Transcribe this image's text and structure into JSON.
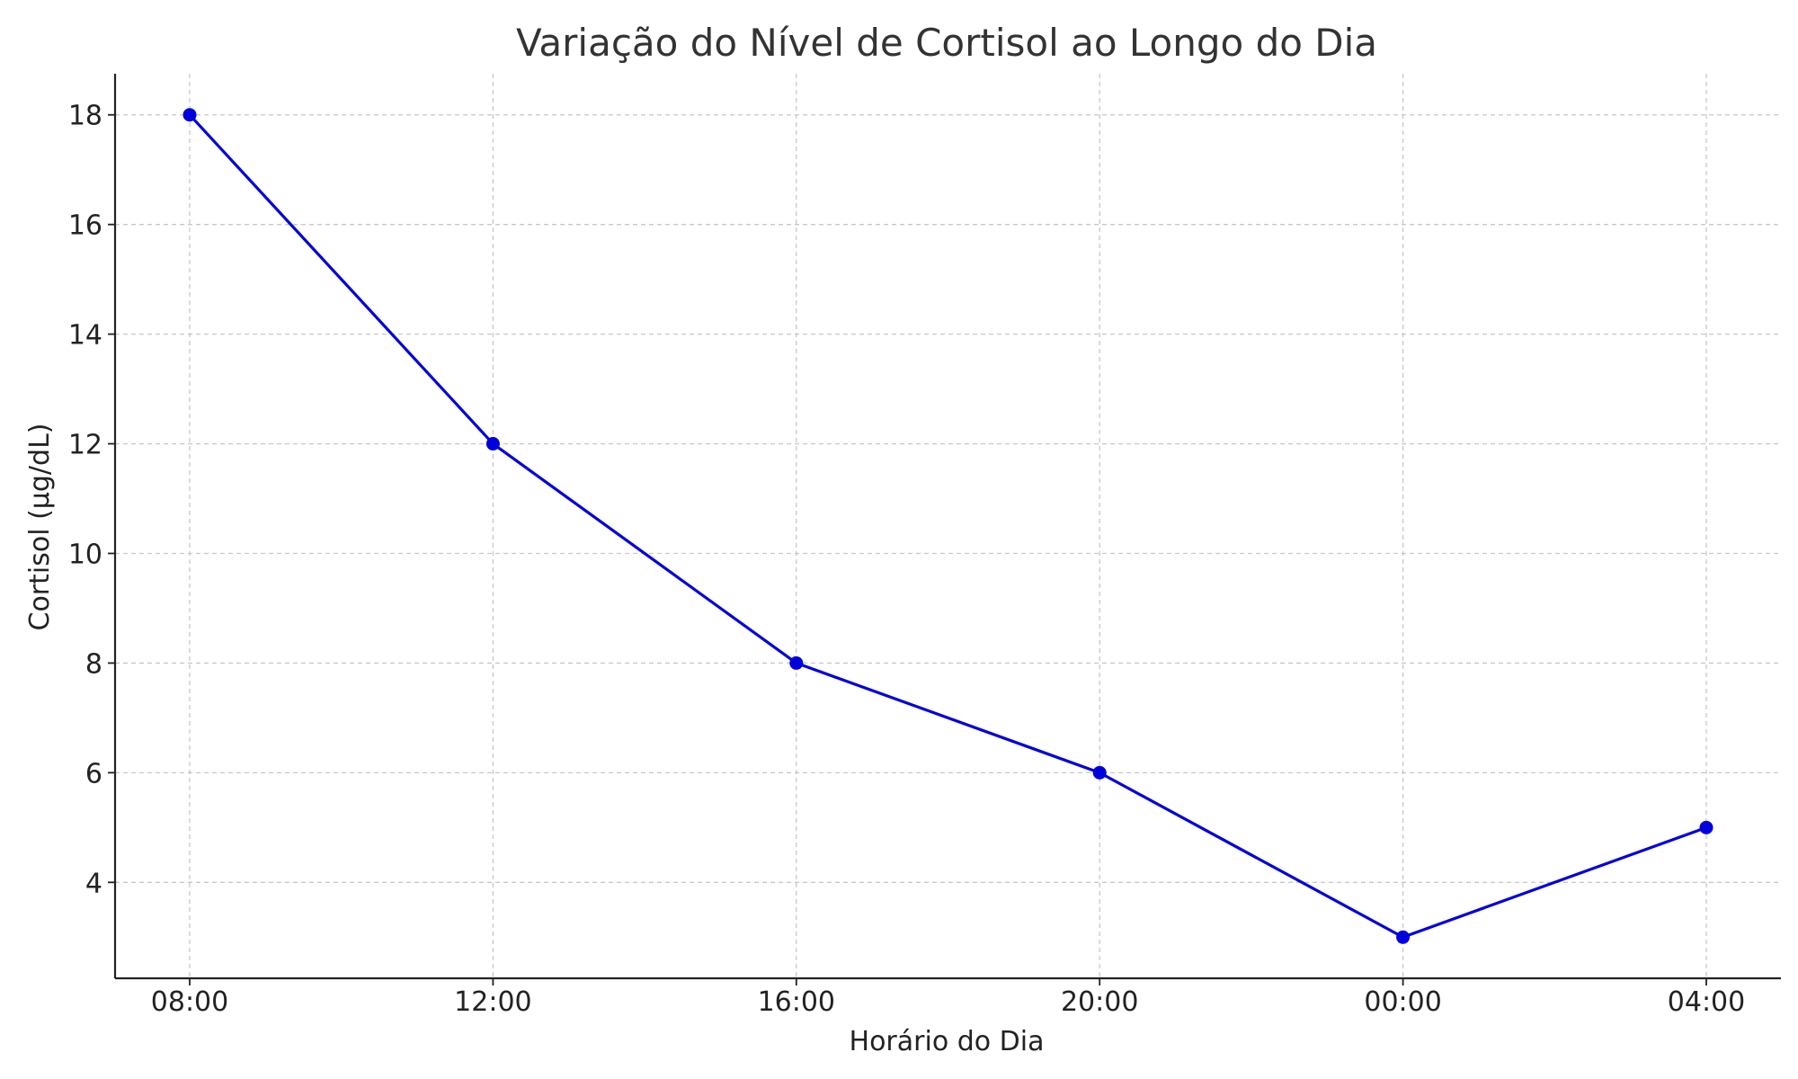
{
  "chart_data": {
    "type": "line",
    "title": "Variação do Nível de Cortisol ao Longo do Dia",
    "xlabel": "Horário do Dia",
    "ylabel": "Cortisol (µg/dL)",
    "categories": [
      "08:00",
      "12:00",
      "16:00",
      "20:00",
      "00:00",
      "04:00"
    ],
    "series": [
      {
        "values": [
          18,
          12,
          8,
          6,
          3,
          5
        ],
        "color": "#0000dd",
        "marker": "circle"
      }
    ],
    "yticks": [
      4,
      6,
      8,
      10,
      12,
      14,
      16,
      18
    ],
    "ylim": [
      2.25,
      18.75
    ],
    "grid": true,
    "legend": "none"
  }
}
